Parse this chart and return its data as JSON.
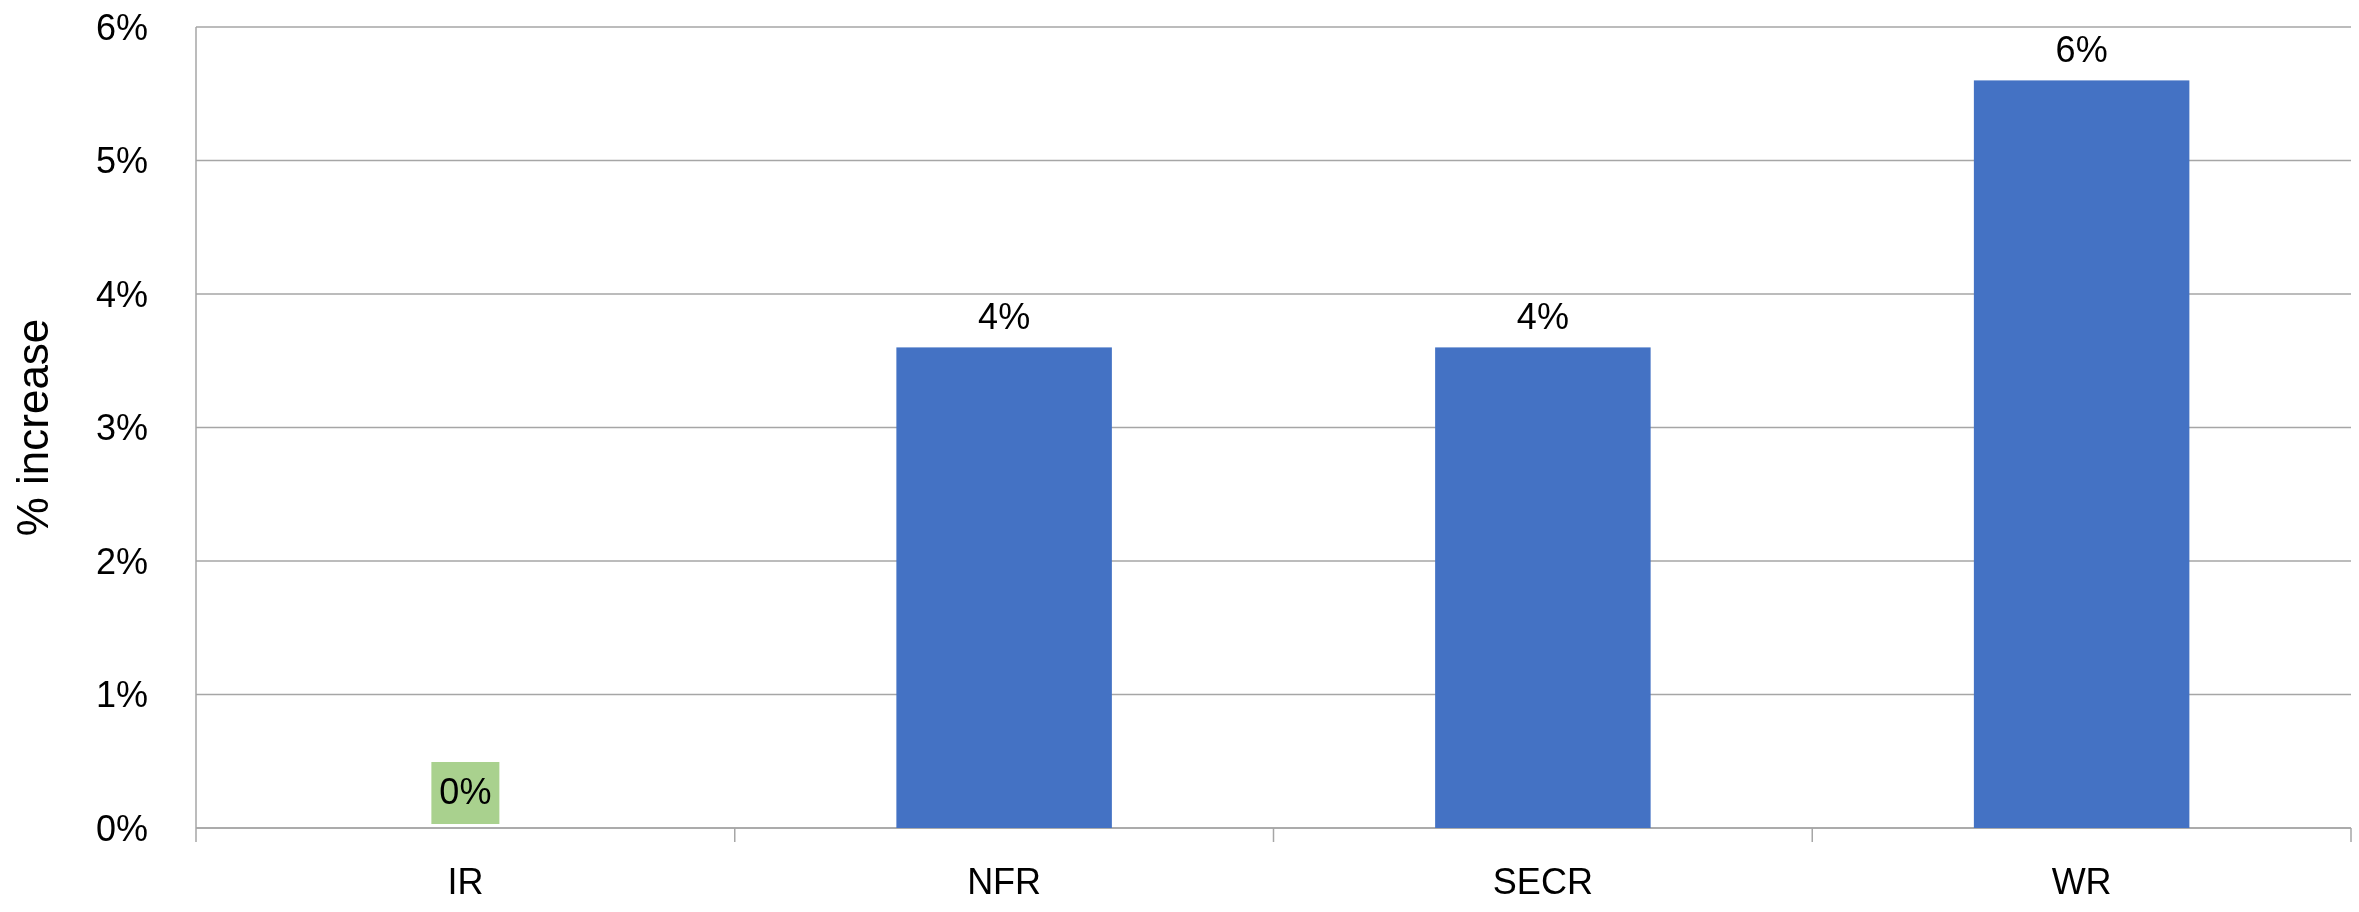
{
  "chart_data": {
    "type": "bar",
    "ylabel": "% increase",
    "categories": [
      "IR",
      "NFR",
      "SECR",
      "WR"
    ],
    "values": [
      0,
      3.6,
      3.6,
      5.6
    ],
    "colors": [
      "#a9d18e",
      "#4472c4",
      "#4472c4",
      "#4472c4"
    ],
    "value_labels": [
      "0%",
      "4%",
      "4%",
      "6%"
    ],
    "ylim": [
      0,
      6
    ],
    "yticks": [
      {
        "value": 0,
        "label": "0%"
      },
      {
        "value": 1,
        "label": "1%"
      },
      {
        "value": 2,
        "label": "2%"
      },
      {
        "value": 3,
        "label": "3%"
      },
      {
        "value": 4,
        "label": "4%"
      },
      {
        "value": 5,
        "label": "5%"
      },
      {
        "value": 6,
        "label": "6%"
      }
    ],
    "grid": "y"
  }
}
